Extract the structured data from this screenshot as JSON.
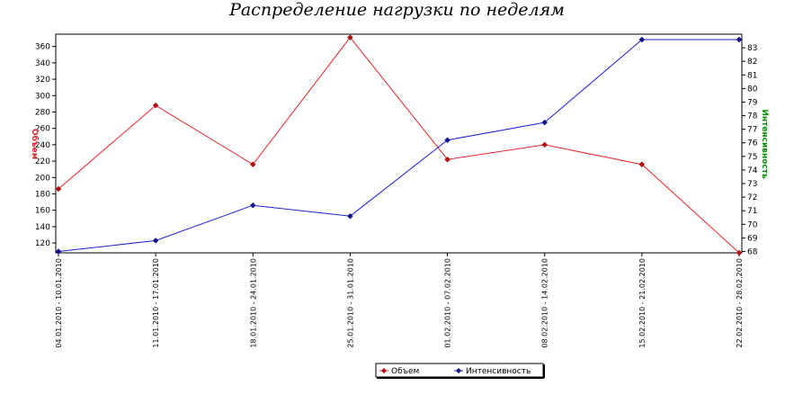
{
  "chart_data": {
    "type": "line",
    "title": "Распределение нагрузки по неделям",
    "categories": [
      "04.01.2010 - 10.01.2010",
      "11.01.2010 - 17.01.2010",
      "18.01.2010 - 24.01.2010",
      "25.01.2010 - 31.01.2010",
      "01.02.2010 - 07.02.2010",
      "08.02.2010 - 14.02.2010",
      "15.02.2010 - 21.02.2010",
      "22.02.2010 - 28.02.2010"
    ],
    "series": [
      {
        "name": "Объем",
        "axis": "left",
        "color": "#e8242c",
        "marker_color": "#b01010",
        "values": [
          186,
          288,
          216,
          371,
          222,
          240,
          216,
          108
        ]
      },
      {
        "name": "Интенсивность",
        "axis": "right",
        "color": "#1f1fd6",
        "marker_color": "#10108a",
        "values": [
          68.0,
          68.8,
          71.4,
          70.6,
          76.2,
          77.5,
          83.6,
          83.6
        ]
      }
    ],
    "ylabel_left": "Объем",
    "ylabel_right": "Интенсивность",
    "ylabel_left_color": "#e8242c",
    "ylabel_right_color": "#0a8a0a",
    "ylim_left": [
      108,
      375
    ],
    "ylim_right": [
      67.9,
      84.0
    ],
    "yticks_left": [
      120,
      140,
      160,
      180,
      200,
      220,
      240,
      260,
      280,
      300,
      320,
      340,
      360
    ],
    "yticks_right": [
      68,
      69,
      70,
      71,
      72,
      73,
      74,
      75,
      76,
      77,
      78,
      79,
      80,
      81,
      82,
      83
    ],
    "grid": false,
    "legend_position": "bottom"
  }
}
